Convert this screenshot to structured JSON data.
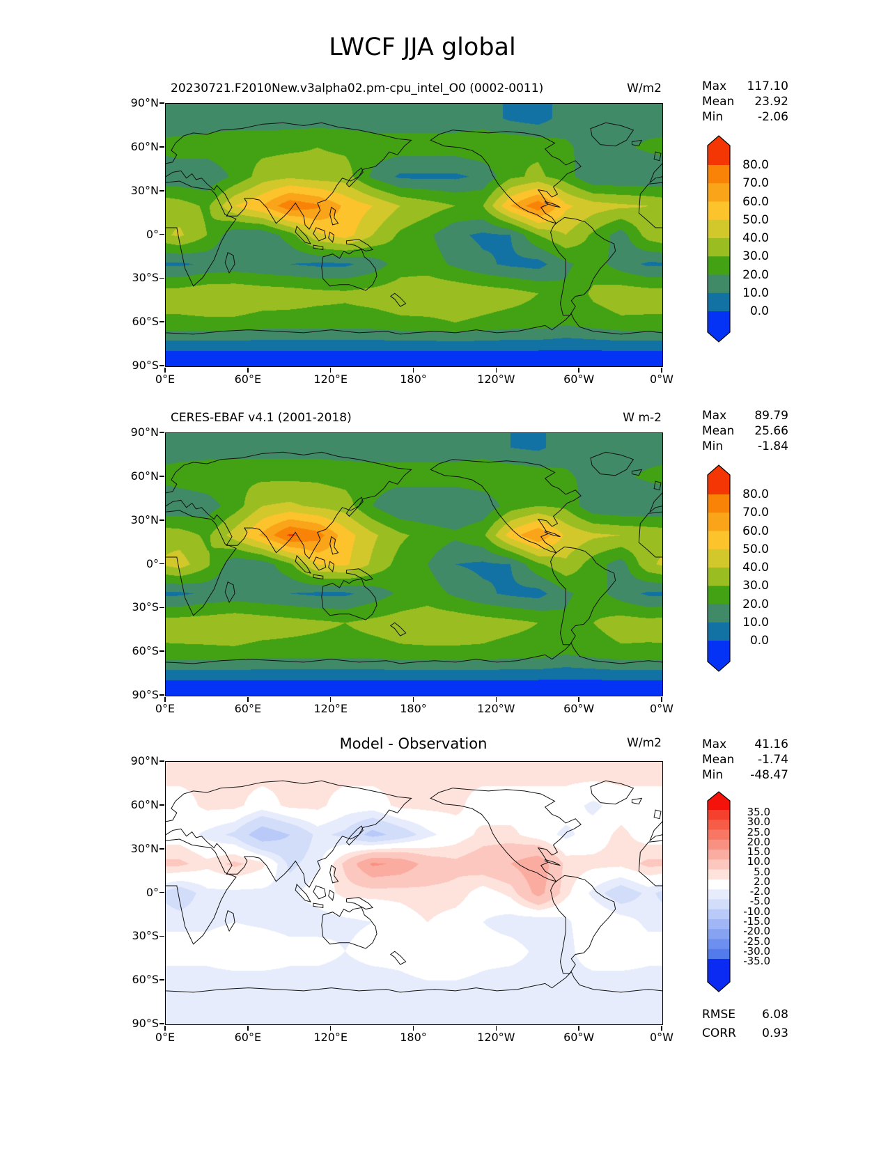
{
  "title": "LWCF JJA global",
  "axes": {
    "lat_tick_labels": [
      "90°N",
      "60°N",
      "30°N",
      "0°",
      "30°S",
      "60°S",
      "90°S"
    ],
    "lon_tick_labels": [
      "0°E",
      "60°E",
      "120°E",
      "180°",
      "120°W",
      "60°W",
      "0°W"
    ]
  },
  "panels": [
    {
      "id": "model",
      "subtitle": "20230721.F2010New.v3alpha02.pm-cpu_intel_O0 (0002-0011)",
      "units": "W/m2",
      "stats": [
        {
          "label": "Max",
          "value": "117.10"
        },
        {
          "label": "Mean",
          "value": "23.92"
        },
        {
          "label": "Min",
          "value": "-2.06"
        }
      ]
    },
    {
      "id": "observation",
      "subtitle": "CERES-EBAF v4.1 (2001-2018)",
      "units": "W m-2",
      "stats": [
        {
          "label": "Max",
          "value": "89.79"
        },
        {
          "label": "Mean",
          "value": "25.66"
        },
        {
          "label": "Min",
          "value": "-1.84"
        }
      ]
    },
    {
      "id": "difference",
      "subtitle": "Model - Observation",
      "units": "W/m2",
      "stats": [
        {
          "label": "Max",
          "value": "41.16"
        },
        {
          "label": "Mean",
          "value": "-1.74"
        },
        {
          "label": "Min",
          "value": "-48.47"
        }
      ],
      "extra_stats": [
        {
          "label": "RMSE",
          "value": "6.08"
        },
        {
          "label": "CORR",
          "value": "0.93"
        }
      ]
    }
  ],
  "chart_data": [
    {
      "type": "heatmap",
      "title": "20230721.F2010New.v3alpha02.pm-cpu_intel_O0 (0002-0011)",
      "units": "W/m2",
      "projection": "equirectangular lon 0E..360, lat 90N..90S",
      "lon_centers": [
        10,
        30,
        50,
        70,
        90,
        110,
        130,
        150,
        170,
        190,
        210,
        230,
        250,
        270,
        290,
        310,
        330,
        350
      ],
      "lat_centers": [
        80,
        60,
        40,
        20,
        0,
        -20,
        -40,
        -60,
        -80
      ],
      "levels": [
        0,
        10,
        20,
        30,
        40,
        50,
        60,
        70,
        80
      ],
      "colors": [
        "#0533f6",
        "#1272a3",
        "#418a68",
        "#42a214",
        "#9abe22",
        "#d3c82b",
        "#fcc32d",
        "#faa419",
        "#f98307",
        "#f43605"
      ],
      "colorbar_tick_labels": [
        "80.0",
        "70.0",
        "60.0",
        "50.0",
        "40.0",
        "30.0",
        "20.0",
        "10.0",
        "0.0"
      ],
      "stats": {
        "max": 117.1,
        "mean": 23.92,
        "min": -2.06
      },
      "values": [
        [
          12,
          15,
          15,
          15,
          15,
          15,
          15,
          15,
          15,
          15,
          15,
          15,
          8,
          5,
          15,
          15,
          15,
          15
        ],
        [
          25,
          25,
          27,
          27,
          28,
          30,
          28,
          25,
          25,
          25,
          25,
          28,
          30,
          28,
          22,
          15,
          18,
          22
        ],
        [
          12,
          12,
          22,
          35,
          38,
          35,
          35,
          18,
          8,
          8,
          8,
          12,
          28,
          32,
          25,
          10,
          10,
          10
        ],
        [
          35,
          28,
          50,
          60,
          78,
          72,
          58,
          50,
          40,
          35,
          30,
          30,
          60,
          78,
          52,
          45,
          42,
          40
        ],
        [
          42,
          30,
          12,
          12,
          25,
          48,
          55,
          40,
          28,
          22,
          12,
          8,
          10,
          30,
          40,
          28,
          15,
          35
        ],
        [
          8,
          12,
          14,
          12,
          10,
          8,
          8,
          14,
          25,
          25,
          18,
          12,
          8,
          6,
          18,
          25,
          15,
          8
        ],
        [
          35,
          38,
          38,
          36,
          35,
          33,
          32,
          34,
          36,
          38,
          38,
          36,
          34,
          30,
          22,
          32,
          36,
          35
        ],
        [
          28,
          28,
          28,
          26,
          26,
          26,
          26,
          26,
          28,
          28,
          30,
          28,
          26,
          26,
          22,
          25,
          28,
          28
        ],
        [
          -1,
          -1,
          -1,
          -1,
          -1,
          -1,
          -1,
          -1,
          -1,
          -1,
          -1,
          -1,
          -1,
          -1,
          -1,
          -1,
          -1,
          -1
        ]
      ]
    },
    {
      "type": "heatmap",
      "title": "CERES-EBAF v4.1 (2001-2018)",
      "units": "W m-2",
      "projection": "equirectangular lon 0E..360, lat 90N..90S",
      "lon_centers": [
        10,
        30,
        50,
        70,
        90,
        110,
        130,
        150,
        170,
        190,
        210,
        230,
        250,
        270,
        290,
        310,
        330,
        350
      ],
      "lat_centers": [
        80,
        60,
        40,
        20,
        0,
        -20,
        -40,
        -60,
        -80
      ],
      "levels": [
        0,
        10,
        20,
        30,
        40,
        50,
        60,
        70,
        80
      ],
      "colors": [
        "#0533f6",
        "#1272a3",
        "#418a68",
        "#42a214",
        "#9abe22",
        "#d3c82b",
        "#fcc32d",
        "#faa419",
        "#f98307",
        "#f43605"
      ],
      "colorbar_tick_labels": [
        "80.0",
        "70.0",
        "60.0",
        "50.0",
        "40.0",
        "30.0",
        "20.0",
        "10.0",
        "0.0"
      ],
      "stats": {
        "max": 89.79,
        "mean": 25.66,
        "min": -1.84
      },
      "values": [
        [
          15,
          15,
          15,
          15,
          15,
          15,
          15,
          15,
          15,
          15,
          15,
          15,
          10,
          8,
          15,
          15,
          15,
          15
        ],
        [
          25,
          27,
          28,
          28,
          28,
          28,
          26,
          25,
          25,
          25,
          25,
          28,
          28,
          26,
          22,
          16,
          18,
          22
        ],
        [
          12,
          15,
          25,
          40,
          42,
          38,
          35,
          20,
          10,
          10,
          10,
          12,
          25,
          30,
          28,
          12,
          10,
          10
        ],
        [
          35,
          28,
          45,
          62,
          82,
          75,
          55,
          42,
          32,
          26,
          22,
          28,
          55,
          70,
          48,
          42,
          40,
          38
        ],
        [
          45,
          32,
          12,
          14,
          28,
          50,
          52,
          38,
          26,
          20,
          10,
          8,
          10,
          28,
          38,
          25,
          15,
          38
        ],
        [
          8,
          12,
          14,
          12,
          10,
          8,
          8,
          14,
          22,
          25,
          18,
          12,
          8,
          6,
          18,
          25,
          15,
          8
        ],
        [
          35,
          36,
          38,
          36,
          34,
          32,
          30,
          33,
          35,
          37,
          37,
          35,
          33,
          30,
          22,
          30,
          35,
          34
        ],
        [
          28,
          28,
          28,
          26,
          26,
          26,
          26,
          26,
          28,
          28,
          28,
          28,
          26,
          26,
          22,
          25,
          28,
          28
        ],
        [
          -1,
          -1,
          -1,
          -1,
          -1,
          -1,
          -1,
          -1,
          -1,
          -1,
          -1,
          -1,
          -1,
          -1,
          -1,
          -1,
          -1,
          -1
        ]
      ]
    },
    {
      "type": "heatmap",
      "title": "Model - Observation",
      "units": "W/m2",
      "projection": "equirectangular lon 0E..360, lat 90N..90S",
      "lon_centers": [
        10,
        30,
        50,
        70,
        90,
        110,
        130,
        150,
        170,
        190,
        210,
        230,
        250,
        270,
        290,
        310,
        330,
        350
      ],
      "lat_centers": [
        80,
        60,
        40,
        20,
        0,
        -20,
        -40,
        -60,
        -80
      ],
      "levels": [
        -35,
        -30,
        -25,
        -20,
        -15,
        -10,
        -5,
        -2,
        2,
        5,
        10,
        15,
        20,
        25,
        30,
        35
      ],
      "colors": [
        "#0b2bf2",
        "#537bec",
        "#6d8fef",
        "#86a3f2",
        "#a0b6f5",
        "#b9caf8",
        "#d2ddfa",
        "#e6ecfc",
        "#ffffff",
        "#fee2dc",
        "#fcc7be",
        "#fbaca0",
        "#f99182",
        "#f87764",
        "#f65c46",
        "#f4402c",
        "#f3130b"
      ],
      "colorbar_tick_labels": [
        "35.0",
        "30.0",
        "25.0",
        "20.0",
        "15.0",
        "10.0",
        "5.0",
        "2.0",
        "-2.0",
        "-5.0",
        "-10.0",
        "-15.0",
        "-20.0",
        "-25.0",
        "-30.0",
        "-35.0"
      ],
      "stats": {
        "max": 41.16,
        "mean": -1.74,
        "min": -48.47,
        "rmse": 6.08,
        "corr": 0.93
      },
      "values": [
        [
          3,
          3,
          3,
          3,
          3,
          3,
          3,
          3,
          3,
          3,
          3,
          3,
          3,
          3,
          3,
          3,
          3,
          3
        ],
        [
          0,
          3,
          3,
          0,
          3,
          3,
          0,
          0,
          3,
          3,
          3,
          0,
          0,
          0,
          0,
          -3,
          0,
          0
        ],
        [
          0,
          -3,
          -6,
          -14,
          -10,
          -4,
          -6,
          -12,
          -8,
          -3,
          0,
          3,
          3,
          0,
          -3,
          0,
          3,
          0
        ],
        [
          6,
          3,
          6,
          3,
          -6,
          -3,
          6,
          16,
          14,
          8,
          6,
          8,
          10,
          14,
          4,
          3,
          3,
          6
        ],
        [
          -8,
          -3,
          -3,
          -3,
          -3,
          0,
          3,
          3,
          3,
          4,
          4,
          0,
          3,
          12,
          3,
          -3,
          -8,
          -4
        ],
        [
          -3,
          -3,
          -2,
          -3,
          -4,
          -4,
          -3,
          -2,
          0,
          2,
          0,
          -2,
          -4,
          -5,
          -3,
          2,
          0,
          -3
        ],
        [
          0,
          0,
          2,
          2,
          0,
          0,
          -2,
          0,
          0,
          2,
          2,
          0,
          0,
          -3,
          -4,
          2,
          2,
          0
        ],
        [
          -4,
          -4,
          -4,
          -4,
          -4,
          -4,
          -4,
          -4,
          -3,
          -2,
          -2,
          -3,
          -4,
          -4,
          -4,
          -4,
          -4,
          -4
        ],
        [
          -3,
          -3,
          -3,
          -3,
          -3,
          -3,
          -3,
          -3,
          -3,
          -3,
          -3,
          -3,
          -3,
          -3,
          -3,
          -3,
          -3,
          -3
        ]
      ]
    }
  ]
}
